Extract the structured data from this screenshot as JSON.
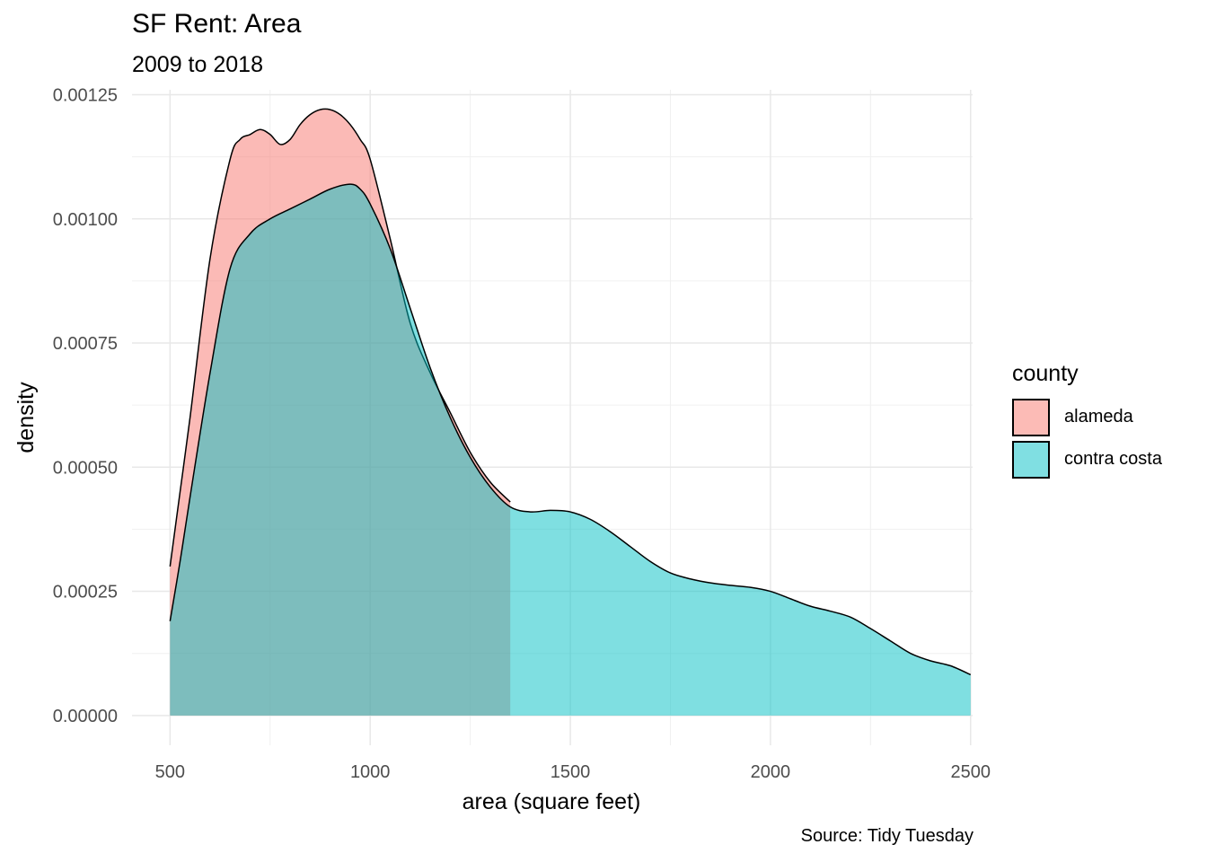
{
  "chart_data": {
    "type": "area",
    "title": "SF Rent: Area",
    "subtitle": "2009 to 2018",
    "xlabel": "area (square feet)",
    "ylabel": "density",
    "caption": "Source: Tidy Tuesday",
    "xlim": [
      405,
      2505
    ],
    "ylim": [
      -6e-05,
      0.00126
    ],
    "xticks": [
      500,
      1000,
      1500,
      2000,
      2500
    ],
    "xtick_labels": [
      "500",
      "1000",
      "1500",
      "2000",
      "2500"
    ],
    "yticks": [
      0,
      0.00025,
      0.0005,
      0.00075,
      0.001,
      0.00125
    ],
    "ytick_labels": [
      "0.00000",
      "0.00025",
      "0.00050",
      "0.00075",
      "0.00100",
      "0.00125"
    ],
    "grid": true,
    "legend": {
      "title": "county",
      "position": "right"
    },
    "series": [
      {
        "name": "alameda",
        "color": "#F8766D",
        "x": [
          500,
          525,
          550,
          600,
          650,
          675,
          700,
          725,
          750,
          775,
          800,
          825,
          850,
          875,
          900,
          925,
          950,
          975,
          1000,
          1050,
          1100,
          1150,
          1200,
          1250,
          1300,
          1350
        ],
        "y": [
          0.0003,
          0.00045,
          0.0006,
          0.00092,
          0.00112,
          0.00116,
          0.00117,
          0.00118,
          0.00117,
          0.00115,
          0.00116,
          0.00119,
          0.00121,
          0.00122,
          0.00122,
          0.00121,
          0.00119,
          0.00116,
          0.00112,
          0.00096,
          0.00079,
          0.00069,
          0.00061,
          0.00053,
          0.00047,
          0.00043
        ]
      },
      {
        "name": "contra costa",
        "color": "#00BFC4",
        "x": [
          500,
          525,
          550,
          600,
          650,
          700,
          750,
          800,
          850,
          900,
          950,
          975,
          1000,
          1050,
          1100,
          1150,
          1200,
          1250,
          1300,
          1350,
          1400,
          1450,
          1500,
          1550,
          1600,
          1650,
          1700,
          1750,
          1800,
          1850,
          1900,
          1950,
          2000,
          2050,
          2100,
          2150,
          2200,
          2250,
          2300,
          2350,
          2400,
          2450,
          2500
        ],
        "y": [
          0.00019,
          0.00031,
          0.00044,
          0.00069,
          0.0009,
          0.00097,
          0.001,
          0.00102,
          0.00104,
          0.00106,
          0.00107,
          0.00106,
          0.00103,
          0.00094,
          0.00082,
          0.0007,
          0.0006,
          0.00052,
          0.00046,
          0.00042,
          0.00041,
          0.000413,
          0.00041,
          0.000395,
          0.00037,
          0.00034,
          0.00031,
          0.000287,
          0.000275,
          0.000267,
          0.000262,
          0.000258,
          0.00025,
          0.000235,
          0.00022,
          0.00021,
          0.000198,
          0.000175,
          0.00015,
          0.000125,
          0.00011,
          0.0001,
          8.2e-05
        ]
      }
    ]
  }
}
